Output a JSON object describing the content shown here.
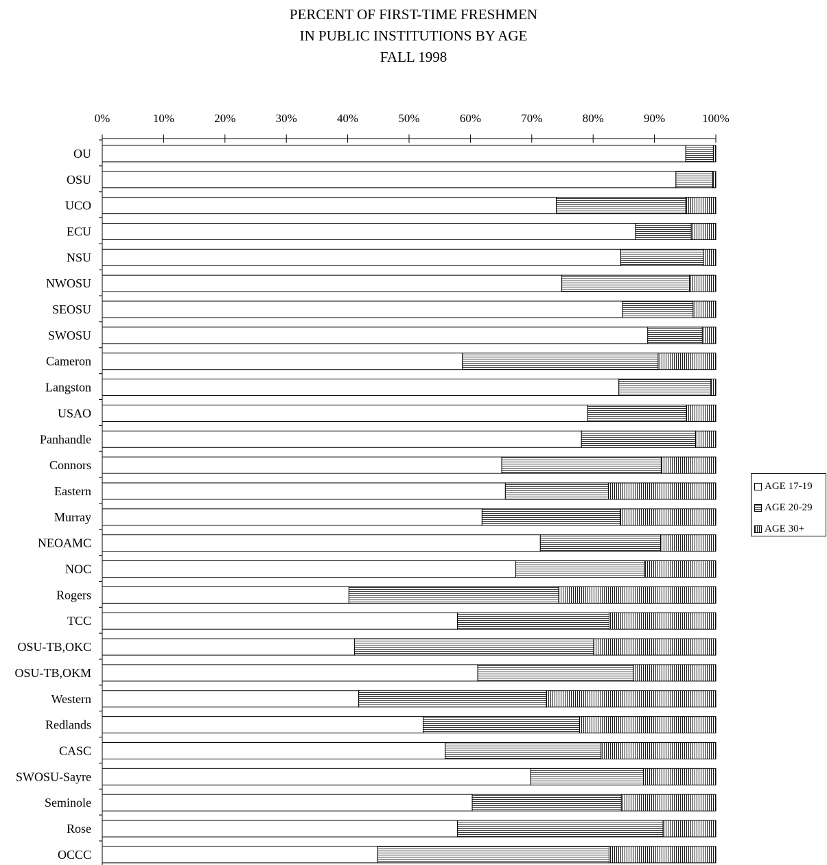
{
  "chart_data": {
    "type": "bar",
    "orientation": "horizontal",
    "stacked": true,
    "percent": true,
    "title": [
      "PERCENT OF FIRST-TIME FRESHMEN",
      "IN PUBLIC INSTITUTIONS BY AGE",
      "FALL 1998"
    ],
    "x_ticks": [
      "0%",
      "10%",
      "20%",
      "30%",
      "40%",
      "50%",
      "60%",
      "70%",
      "80%",
      "90%",
      "100%"
    ],
    "xlim": [
      0,
      100
    ],
    "categories": [
      "OU",
      "OSU",
      "UCO",
      "ECU",
      "NSU",
      "NWOSU",
      "SEOSU",
      "SWOSU",
      "Cameron",
      "Langston",
      "USAO",
      "Panhandle",
      "Connors",
      "Eastern",
      "Murray",
      "NEOAMC",
      "NOC",
      "Rogers",
      "TCC",
      "OSU-TB,OKC",
      "OSU-TB,OKM",
      "Western",
      "Redlands",
      "CASC",
      "SWOSU-Sayre",
      "Seminole",
      "Rose",
      "OCCC"
    ],
    "series": [
      {
        "name": "AGE 17-19",
        "pattern": "blank",
        "values": [
          95.1,
          93.5,
          74.0,
          86.9,
          84.5,
          74.9,
          84.8,
          88.9,
          58.7,
          84.2,
          79.1,
          78.1,
          65.1,
          65.7,
          61.9,
          71.4,
          67.4,
          40.2,
          57.9,
          41.1,
          61.2,
          41.8,
          52.3,
          55.9,
          69.8,
          60.3,
          57.9,
          44.9
        ]
      },
      {
        "name": "AGE 20-29",
        "pattern": "horizontal",
        "values": [
          4.5,
          6.0,
          21.1,
          9.1,
          13.5,
          20.8,
          11.5,
          8.9,
          31.9,
          15.0,
          16.1,
          18.6,
          26.0,
          16.8,
          22.5,
          19.6,
          21.0,
          34.2,
          24.7,
          39.0,
          25.4,
          30.6,
          25.5,
          25.4,
          18.4,
          24.3,
          33.5,
          37.7
        ]
      },
      {
        "name": "AGE 30+",
        "pattern": "vertical",
        "values": [
          0.4,
          0.5,
          4.9,
          4.0,
          2.0,
          4.3,
          3.7,
          2.2,
          9.4,
          0.8,
          4.8,
          3.3,
          8.9,
          17.5,
          15.6,
          9.0,
          11.6,
          25.6,
          17.4,
          19.9,
          13.4,
          27.6,
          22.2,
          18.7,
          11.8,
          15.4,
          8.6,
          17.4
        ]
      }
    ],
    "grid": false,
    "legend_position": "right"
  }
}
